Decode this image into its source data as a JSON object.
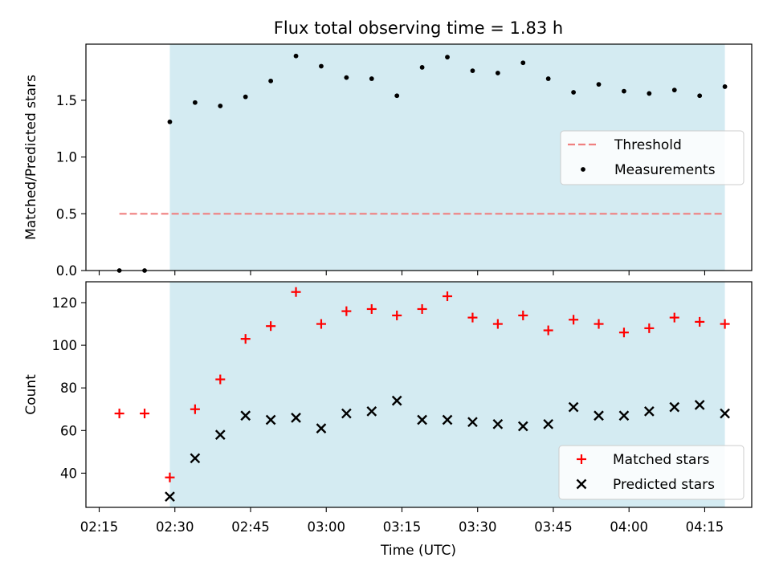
{
  "chart_data": {
    "title": "Flux total observing time = 1.83 h",
    "xlabel": "Time (UTC)",
    "x_unit": "HH:MM UTC",
    "x_ticks": [
      "02:15",
      "02:30",
      "02:45",
      "03:00",
      "03:15",
      "03:30",
      "03:45",
      "04:00",
      "04:15"
    ],
    "shaded_interval": {
      "start": "02:29",
      "end": "04:19",
      "color": "#add8e6"
    },
    "panels": [
      {
        "type": "scatter",
        "ylabel": "Matched/Predicted stars",
        "ylim": [
          0,
          2.0
        ],
        "y_ticks": [
          "0.0",
          "0.5",
          "1.0",
          "1.5"
        ],
        "legend_position": "center-right",
        "series": [
          {
            "name": "Threshold",
            "kind": "line",
            "style": "dashed",
            "color": "#f08080",
            "points": [
              [
                "02:19",
                0.5
              ],
              [
                "04:19",
                0.5
              ]
            ]
          },
          {
            "name": "Measurements",
            "kind": "scatter",
            "marker": "dot",
            "color": "#000000",
            "points": [
              [
                "02:19",
                0.0
              ],
              [
                "02:24",
                0.0
              ],
              [
                "02:29",
                1.31
              ],
              [
                "02:34",
                1.48
              ],
              [
                "02:39",
                1.45
              ],
              [
                "02:44",
                1.53
              ],
              [
                "02:49",
                1.67
              ],
              [
                "02:54",
                1.89
              ],
              [
                "02:59",
                1.8
              ],
              [
                "03:04",
                1.7
              ],
              [
                "03:09",
                1.69
              ],
              [
                "03:14",
                1.54
              ],
              [
                "03:19",
                1.79
              ],
              [
                "03:24",
                1.88
              ],
              [
                "03:29",
                1.76
              ],
              [
                "03:34",
                1.74
              ],
              [
                "03:39",
                1.83
              ],
              [
                "03:44",
                1.69
              ],
              [
                "03:49",
                1.57
              ],
              [
                "03:54",
                1.64
              ],
              [
                "03:59",
                1.58
              ],
              [
                "04:04",
                1.56
              ],
              [
                "04:09",
                1.59
              ],
              [
                "04:14",
                1.54
              ],
              [
                "04:19",
                1.62
              ]
            ]
          }
        ]
      },
      {
        "type": "scatter",
        "ylabel": "Count",
        "ylim": [
          24,
          130
        ],
        "y_ticks": [
          "40",
          "60",
          "80",
          "100",
          "120"
        ],
        "legend_position": "bottom-right",
        "series": [
          {
            "name": "Matched stars",
            "kind": "scatter",
            "marker": "plus",
            "color": "#ff0000",
            "points": [
              [
                "02:19",
                68
              ],
              [
                "02:24",
                68
              ],
              [
                "02:29",
                38
              ],
              [
                "02:34",
                70
              ],
              [
                "02:39",
                84
              ],
              [
                "02:44",
                103
              ],
              [
                "02:49",
                109
              ],
              [
                "02:54",
                125
              ],
              [
                "02:59",
                110
              ],
              [
                "03:04",
                116
              ],
              [
                "03:09",
                117
              ],
              [
                "03:14",
                114
              ],
              [
                "03:19",
                117
              ],
              [
                "03:24",
                123
              ],
              [
                "03:29",
                113
              ],
              [
                "03:34",
                110
              ],
              [
                "03:39",
                114
              ],
              [
                "03:44",
                107
              ],
              [
                "03:49",
                112
              ],
              [
                "03:54",
                110
              ],
              [
                "03:59",
                106
              ],
              [
                "04:04",
                108
              ],
              [
                "04:09",
                113
              ],
              [
                "04:14",
                111
              ],
              [
                "04:19",
                110
              ]
            ]
          },
          {
            "name": "Predicted stars",
            "kind": "scatter",
            "marker": "x",
            "color": "#000000",
            "points": [
              [
                "02:29",
                29
              ],
              [
                "02:34",
                47
              ],
              [
                "02:39",
                58
              ],
              [
                "02:44",
                67
              ],
              [
                "02:49",
                65
              ],
              [
                "02:54",
                66
              ],
              [
                "02:59",
                61
              ],
              [
                "03:04",
                68
              ],
              [
                "03:09",
                69
              ],
              [
                "03:14",
                74
              ],
              [
                "03:19",
                65
              ],
              [
                "03:24",
                65
              ],
              [
                "03:29",
                64
              ],
              [
                "03:34",
                63
              ],
              [
                "03:39",
                62
              ],
              [
                "03:44",
                63
              ],
              [
                "03:49",
                71
              ],
              [
                "03:54",
                67
              ],
              [
                "03:59",
                67
              ],
              [
                "04:04",
                69
              ],
              [
                "04:09",
                71
              ],
              [
                "04:14",
                72
              ],
              [
                "04:19",
                68
              ]
            ]
          }
        ]
      }
    ]
  }
}
